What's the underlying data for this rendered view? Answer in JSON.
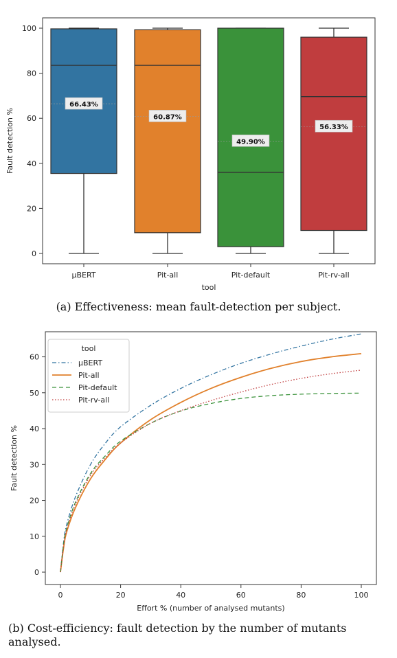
{
  "chart_data": [
    {
      "type": "box",
      "xlabel": "tool",
      "ylabel": "Fault detection %",
      "ylim": [
        0,
        100
      ],
      "yticks": [
        0,
        20,
        40,
        60,
        80,
        100
      ],
      "grid": false,
      "categories": [
        "µBERT",
        "Pit-all",
        "Pit-default",
        "Pit-rv-all"
      ],
      "colors": [
        "#3274a1",
        "#e1812c",
        "#3a923a",
        "#c03d3e"
      ],
      "boxes": [
        {
          "min": 0,
          "q1": 35.5,
          "median": 83.5,
          "q3": 99.7,
          "max": 100,
          "mean": 66.43,
          "mean_label": "66.43%"
        },
        {
          "min": 0,
          "q1": 9.2,
          "median": 83.5,
          "q3": 99.3,
          "max": 100,
          "mean": 60.87,
          "mean_label": "60.87%"
        },
        {
          "min": 0,
          "q1": 3.0,
          "median": 36.0,
          "q3": 100,
          "max": 100,
          "mean": 49.9,
          "mean_label": "49.90%"
        },
        {
          "min": 0,
          "q1": 10.2,
          "median": 69.6,
          "q3": 96.0,
          "max": 100,
          "mean": 56.33,
          "mean_label": "56.33%"
        }
      ],
      "caption": "(a) Effectiveness: mean fault-detection per subject."
    },
    {
      "type": "line",
      "xlabel": "Effort % (number of analysed mutants)",
      "ylabel": "Fault detection %",
      "xlim": [
        0,
        100
      ],
      "ylim": [
        0,
        67
      ],
      "xticks": [
        0,
        20,
        40,
        60,
        80,
        100
      ],
      "yticks": [
        0,
        10,
        20,
        30,
        40,
        50,
        60
      ],
      "legend_title": "tool",
      "legend_position": "top-left",
      "x": [
        0,
        1,
        2,
        5,
        10,
        15,
        20,
        30,
        40,
        50,
        60,
        70,
        80,
        90,
        100
      ],
      "series": [
        {
          "name": "µBERT",
          "color": "#3274a1",
          "dash": "dashdot",
          "values": [
            0,
            8,
            13,
            21,
            30,
            36,
            40.5,
            46.5,
            51.2,
            55,
            58.2,
            60.8,
            63,
            64.9,
            66.4
          ]
        },
        {
          "name": "Pit-all",
          "color": "#e1812c",
          "dash": "solid",
          "values": [
            0,
            6.5,
            11,
            18,
            26,
            31.5,
            36,
            42.5,
            47.3,
            51.2,
            54.3,
            56.8,
            58.7,
            60,
            60.9
          ]
        },
        {
          "name": "Pit-default",
          "color": "#3a923a",
          "dash": "dashed",
          "values": [
            0,
            7.5,
            12,
            19.5,
            27.5,
            32.5,
            36.5,
            41.5,
            44.9,
            47,
            48.4,
            49.2,
            49.6,
            49.8,
            49.9
          ]
        },
        {
          "name": "Pit-rv-all",
          "color": "#c03d3e",
          "dash": "dotted",
          "values": [
            0,
            7,
            11.5,
            19,
            27,
            32,
            36,
            41.5,
            45,
            47.8,
            50.2,
            52.3,
            54,
            55.3,
            56.3
          ]
        }
      ],
      "caption": "(b) Cost-efficiency: fault detection by the number of mutants analysed."
    }
  ]
}
